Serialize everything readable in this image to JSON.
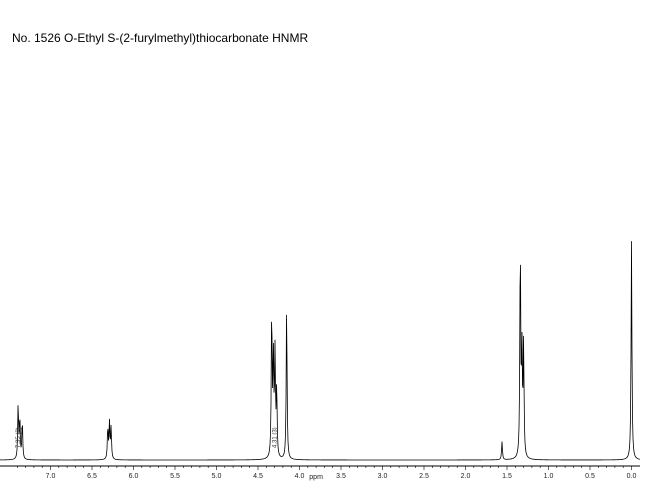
{
  "title": "No. 1526 O-Ethyl S-(2-furylmethyl)thiocarbonate HNMR",
  "chart_data": {
    "type": "line",
    "title": "No. 1526 O-Ethyl S-(2-furylmethyl)thiocarbonate HNMR",
    "xlabel": "ppm",
    "ylabel": "",
    "x_reversed": true,
    "xlim": [
      7.45,
      -0.05
    ],
    "ticks": [
      "7.0",
      "6.5",
      "6.0",
      "5.5",
      "5.0",
      "4.5",
      "4.0",
      "3.5",
      "3.0",
      "2.5",
      "2.0",
      "1.5",
      "1.0",
      "0.5",
      "0.0"
    ],
    "grid": false,
    "peaks": [
      {
        "ppm": 7.39,
        "height": 0.24
      },
      {
        "ppm": 7.37,
        "height": 0.18
      },
      {
        "ppm": 7.34,
        "height": 0.17
      },
      {
        "ppm": 6.31,
        "height": 0.14
      },
      {
        "ppm": 6.29,
        "height": 0.16
      },
      {
        "ppm": 6.27,
        "height": 0.14
      },
      {
        "ppm": 4.335,
        "height": 0.65
      },
      {
        "ppm": 4.315,
        "height": 0.45
      },
      {
        "ppm": 4.295,
        "height": 0.45
      },
      {
        "ppm": 4.275,
        "height": 0.3
      },
      {
        "ppm": 4.155,
        "height": 0.68
      },
      {
        "ppm": 1.56,
        "height": 0.08
      },
      {
        "ppm": 1.34,
        "height": 0.95
      },
      {
        "ppm": 1.32,
        "height": 0.45
      },
      {
        "ppm": 1.3,
        "height": 0.5
      },
      {
        "ppm": 0.0,
        "height": 0.96
      }
    ],
    "integrals": [
      {
        "ppm": 7.39,
        "label": "7.35 (2)"
      },
      {
        "ppm": 4.3,
        "label": "4.31 (3)"
      }
    ]
  }
}
